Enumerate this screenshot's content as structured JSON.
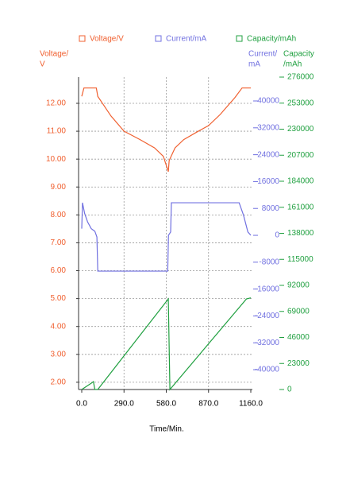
{
  "chart_data": {
    "type": "line",
    "legend": [
      "Voltage/V",
      "Current/mA",
      "Capacity/mAh"
    ],
    "ylabel": [
      "Voltage/",
      "V"
    ],
    "y2label": [
      "Current/",
      "mA"
    ],
    "y3label": [
      "Capacity",
      "/mAh"
    ],
    "xlabel": "Time/Min.",
    "xlim": [
      0,
      1160
    ],
    "xticks": [
      {
        "value": 0,
        "label": "0.0"
      },
      {
        "value": 290,
        "label": "290.0"
      },
      {
        "value": 580,
        "label": "580.0"
      },
      {
        "value": 870,
        "label": "870.0"
      },
      {
        "value": 1160,
        "label": "1160.0"
      }
    ],
    "ylim": [
      1.74,
      12.94
    ],
    "yticks": [
      {
        "value": 2,
        "label": "2.00"
      },
      {
        "value": 3,
        "label": "3.00"
      },
      {
        "value": 4,
        "label": "4.00"
      },
      {
        "value": 5,
        "label": "5.00"
      },
      {
        "value": 6,
        "label": "6.00"
      },
      {
        "value": 7,
        "label": "7.00"
      },
      {
        "value": 8,
        "label": "8.00"
      },
      {
        "value": 9,
        "label": "9.00"
      },
      {
        "value": 10,
        "label": "10.00"
      },
      {
        "value": 11,
        "label": "11.00"
      },
      {
        "value": 12,
        "label": "12.00"
      }
    ],
    "y2lim": [
      -45900,
      47100
    ],
    "y2ticks": [
      -40000,
      -32000,
      -24000,
      -16000,
      -8000,
      0,
      8000,
      16000,
      24000,
      32000,
      40000
    ],
    "y3lim": [
      0,
      276000
    ],
    "y3ticks": [
      0,
      23000,
      46000,
      69000,
      92000,
      115000,
      138000,
      161000,
      184000,
      207000,
      230000,
      253000,
      276000
    ],
    "grid": true,
    "series": [
      {
        "name": "Voltage/V",
        "color": "#f06030",
        "axis": "y",
        "x": [
          0,
          15,
          100,
          110,
          200,
          290,
          400,
          500,
          560,
          594,
          600,
          640,
          700,
          800,
          870,
          950,
          1050,
          1100,
          1160
        ],
        "values": [
          12.25,
          12.55,
          12.55,
          12.25,
          11.55,
          11.0,
          10.7,
          10.4,
          10.1,
          9.55,
          9.95,
          10.4,
          10.7,
          11.0,
          11.2,
          11.6,
          12.2,
          12.55,
          12.55
        ]
      },
      {
        "name": "Current/mA",
        "color": "#7070e0",
        "axis": "y2",
        "x": [
          0,
          5,
          20,
          40,
          65,
          90,
          104,
          110,
          590,
          595,
          610,
          615,
          1080,
          1110,
          1140,
          1160
        ],
        "values": [
          2000,
          9700,
          6500,
          4000,
          2000,
          1200,
          -500,
          -10650,
          -10650,
          0,
          1000,
          9700,
          9700,
          6000,
          1000,
          0
        ]
      },
      {
        "name": "Capacity/mAh",
        "color": "#20a040",
        "axis": "y3",
        "x": [
          0,
          70,
          80,
          90,
          110,
          594,
          605,
          1130,
          1160
        ],
        "values": [
          0,
          6000,
          7000,
          0,
          0,
          80000,
          0,
          80000,
          81000
        ]
      }
    ]
  }
}
